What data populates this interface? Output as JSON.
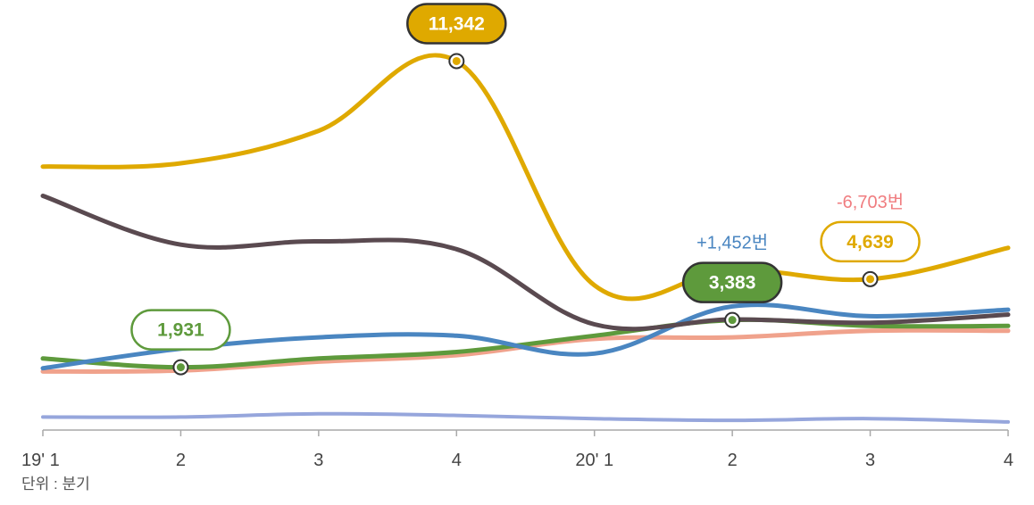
{
  "chart_data": {
    "type": "line",
    "categories": [
      "19' 1",
      "2",
      "3",
      "4",
      "20' 1",
      "2",
      "3",
      "4"
    ],
    "unit_label": "단위 : 분기",
    "ylim": [
      0,
      13000
    ],
    "series": [
      {
        "color": "#dfa900",
        "values": [
          8100,
          8200,
          9200,
          11342,
          4450,
          4930,
          4639,
          5600
        ]
      },
      {
        "color": "#5a4a50",
        "values": [
          7200,
          5700,
          5800,
          5560,
          3250,
          3400,
          3300,
          3550
        ]
      },
      {
        "color": "#4a86c1",
        "values": [
          1900,
          2500,
          2850,
          2900,
          2350,
          3800,
          3500,
          3700
        ]
      },
      {
        "color": "#5e9a3c",
        "values": [
          2200,
          1931,
          2200,
          2400,
          2900,
          3383,
          3200,
          3200
        ]
      },
      {
        "color": "#f0a28c",
        "values": [
          1800,
          1830,
          2100,
          2300,
          2800,
          2850,
          3050,
          3050
        ]
      },
      {
        "color": "#96a6dc",
        "values": [
          400,
          400,
          500,
          450,
          350,
          300,
          350,
          250
        ]
      }
    ],
    "callouts": [
      {
        "series": 0,
        "index": 3,
        "text": "11,342",
        "filled": true,
        "color": "#dfa900"
      },
      {
        "series": 0,
        "index": 6,
        "text": "4,639",
        "filled": false,
        "color": "#dfa900"
      },
      {
        "series": 3,
        "index": 5,
        "text": "3,383",
        "filled": true,
        "color": "#5e9a3c"
      },
      {
        "series": 3,
        "index": 1,
        "text": "1,931",
        "filled": false,
        "color": "#5e9a3c"
      }
    ],
    "deltas": [
      {
        "series": 3,
        "index": 5,
        "text": "+1,452번",
        "color": "#4a86c1"
      },
      {
        "series": 0,
        "index": 6,
        "text": "-6,703번",
        "color": "#f07d80"
      }
    ]
  }
}
